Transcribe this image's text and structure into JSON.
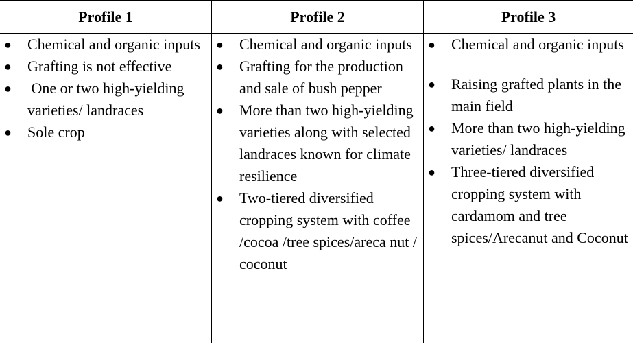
{
  "headers": [
    "Profile 1",
    "Profile 2",
    "Profile 3"
  ],
  "columns": [
    {
      "items": [
        "Chemical and organic inputs",
        "Grafting is not effective",
        " One or two high-yielding varieties/ landraces",
        "Sole crop"
      ]
    },
    {
      "items": [
        "Chemical and organic inputs",
        "Grafting for the production and sale of bush pepper",
        "More than two high-yielding varieties along with selected landraces known for climate resilience",
        "Two-tiered diversified cropping system with coffee /cocoa /tree spices/areca nut / coconut"
      ]
    },
    {
      "items": [
        "Chemical and organic inputs",
        "Raising grafted plants in the main field",
        "More than two high-yielding varieties/ landraces",
        "Three-tiered diversified cropping system with cardamom and tree spices/Arecanut and Coconut"
      ]
    }
  ],
  "bullet_glyph": "●"
}
